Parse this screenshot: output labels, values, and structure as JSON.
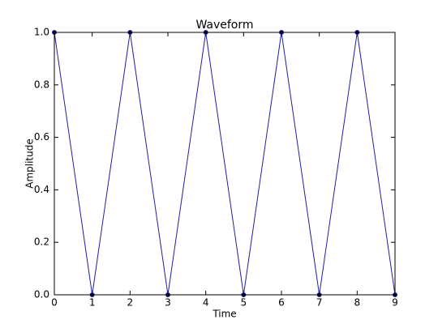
{
  "chart_data": {
    "type": "line",
    "title": "Waveform",
    "xlabel": "Time",
    "ylabel": "Amplitude",
    "x": [
      0,
      1,
      2,
      3,
      4,
      5,
      6,
      7,
      8,
      9
    ],
    "series": [
      {
        "color": "#1f1f9e",
        "marker": true,
        "values": [
          1,
          0,
          1,
          0,
          1,
          0,
          1,
          0,
          1,
          0
        ]
      }
    ],
    "xlim": [
      0,
      9
    ],
    "ylim": [
      0,
      1
    ],
    "xticks": [
      0,
      1,
      2,
      3,
      4,
      5,
      6,
      7,
      8,
      9
    ],
    "yticks": [
      {
        "value": 0,
        "label": "0.0"
      },
      0.2,
      0.4,
      0.6,
      0.8,
      {
        "value": 1,
        "label": "1.0"
      }
    ],
    "grid": false
  }
}
